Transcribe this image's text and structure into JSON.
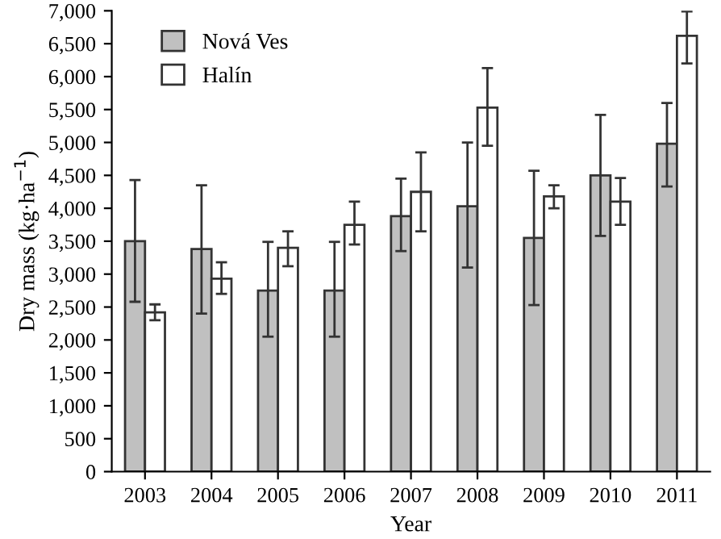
{
  "chart_data": {
    "type": "bar",
    "xlabel": "Year",
    "ylabel": "Dry mass (kg·ha$^{−1}$)",
    "categories": [
      "2003",
      "2004",
      "2005",
      "2006",
      "2007",
      "2008",
      "2009",
      "2010",
      "2011"
    ],
    "series": [
      {
        "name": "Nová Ves",
        "color": "#c0c0c0",
        "values": [
          3500,
          3380,
          2750,
          2750,
          3880,
          4030,
          3550,
          4500,
          4980
        ],
        "errors": [
          [
            2580,
            4430
          ],
          [
            2400,
            4350
          ],
          [
            2050,
            3490
          ],
          [
            2050,
            3490
          ],
          [
            3350,
            4450
          ],
          [
            3100,
            5000
          ],
          [
            2530,
            4570
          ],
          [
            3580,
            5420
          ],
          [
            4330,
            5600
          ]
        ]
      },
      {
        "name": "Halín",
        "color": "#ffffff",
        "values": [
          2420,
          2930,
          3400,
          3750,
          4250,
          5530,
          4180,
          4100,
          6620
        ],
        "errors": [
          [
            2300,
            2540
          ],
          [
            2700,
            3180
          ],
          [
            3120,
            3650
          ],
          [
            3450,
            4100
          ],
          [
            3650,
            4850
          ],
          [
            4950,
            6130
          ],
          [
            4000,
            4350
          ],
          [
            3750,
            4460
          ],
          [
            6200,
            6990
          ]
        ]
      }
    ],
    "ylim": [
      0,
      7000
    ],
    "yticks": [
      {
        "value": 0,
        "label": "0"
      },
      {
        "value": 500,
        "label": "500"
      },
      {
        "value": 1000,
        "label": "1,000"
      },
      {
        "value": 1500,
        "label": "1,500"
      },
      {
        "value": 2000,
        "label": "2,000"
      },
      {
        "value": 2500,
        "label": "2,500"
      },
      {
        "value": 3000,
        "label": "3,000"
      },
      {
        "value": 3500,
        "label": "3,500"
      },
      {
        "value": 4000,
        "label": "4,000"
      },
      {
        "value": 4500,
        "label": "4,500"
      },
      {
        "value": 5000,
        "label": "5,000"
      },
      {
        "value": 5500,
        "label": "5,500"
      },
      {
        "value": 6000,
        "label": "6,000"
      },
      {
        "value": 6500,
        "label": "6,500"
      },
      {
        "value": 7000,
        "label": "7,000"
      }
    ],
    "grid": false,
    "legend": "top left"
  }
}
